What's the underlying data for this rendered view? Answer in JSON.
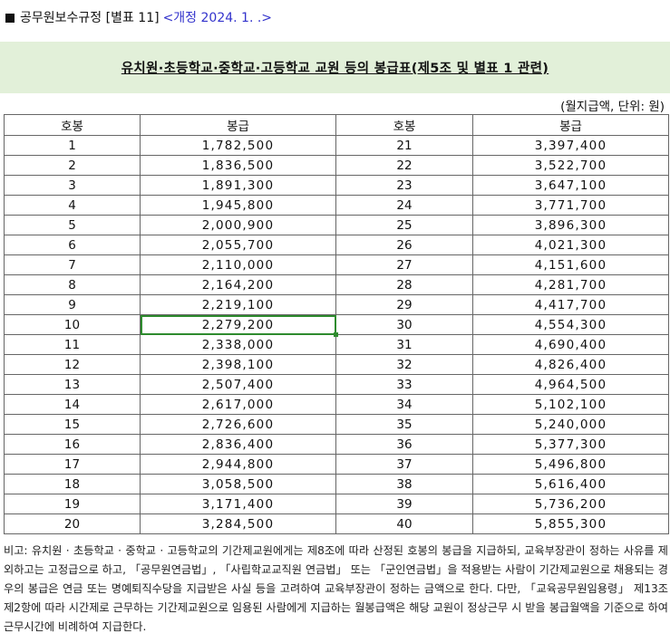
{
  "header": {
    "title": "공무원보수규정 [별표 11]",
    "revision_link": "<개정 2024. 1. .>"
  },
  "banner": {
    "title": "유치원·초등학교·중학교·고등학교 교원 등의 봉급표(제5조 및 별표 1 관련)"
  },
  "unit_label": "(월지급액, 단위: 원)",
  "table": {
    "headers": [
      "호봉",
      "봉급",
      "호봉",
      "봉급"
    ],
    "rows": [
      {
        "g1": "1",
        "p1": "1,782,500",
        "g2": "21",
        "p2": "3,397,400"
      },
      {
        "g1": "2",
        "p1": "1,836,500",
        "g2": "22",
        "p2": "3,522,700"
      },
      {
        "g1": "3",
        "p1": "1,891,300",
        "g2": "23",
        "p2": "3,647,100"
      },
      {
        "g1": "4",
        "p1": "1,945,800",
        "g2": "24",
        "p2": "3,771,700"
      },
      {
        "g1": "5",
        "p1": "2,000,900",
        "g2": "25",
        "p2": "3,896,300"
      },
      {
        "g1": "6",
        "p1": "2,055,700",
        "g2": "26",
        "p2": "4,021,300"
      },
      {
        "g1": "7",
        "p1": "2,110,000",
        "g2": "27",
        "p2": "4,151,600"
      },
      {
        "g1": "8",
        "p1": "2,164,200",
        "g2": "28",
        "p2": "4,281,700"
      },
      {
        "g1": "9",
        "p1": "2,219,100",
        "g2": "29",
        "p2": "4,417,700"
      },
      {
        "g1": "10",
        "p1": "2,279,200",
        "g2": "30",
        "p2": "4,554,300"
      },
      {
        "g1": "11",
        "p1": "2,338,000",
        "g2": "31",
        "p2": "4,690,400"
      },
      {
        "g1": "12",
        "p1": "2,398,100",
        "g2": "32",
        "p2": "4,826,400"
      },
      {
        "g1": "13",
        "p1": "2,507,400",
        "g2": "33",
        "p2": "4,964,500"
      },
      {
        "g1": "14",
        "p1": "2,617,000",
        "g2": "34",
        "p2": "5,102,100"
      },
      {
        "g1": "15",
        "p1": "2,726,600",
        "g2": "35",
        "p2": "5,240,000"
      },
      {
        "g1": "16",
        "p1": "2,836,400",
        "g2": "36",
        "p2": "5,377,300"
      },
      {
        "g1": "17",
        "p1": "2,944,800",
        "g2": "37",
        "p2": "5,496,800"
      },
      {
        "g1": "18",
        "p1": "3,058,500",
        "g2": "38",
        "p2": "5,616,400"
      },
      {
        "g1": "19",
        "p1": "3,171,400",
        "g2": "39",
        "p2": "5,736,200"
      },
      {
        "g1": "20",
        "p1": "3,284,500",
        "g2": "40",
        "p2": "5,855,300"
      }
    ],
    "selected_row": 10
  },
  "note": "비고: 유치원 · 초등학교 · 중학교 · 고등학교의 기간제교원에게는 제8조에 따라 산정된 호봉의 봉급을 지급하되, 교육부장관이 정하는 사유를 제외하고는 고정급으로 하고, 「공무원연금법」, 「사립학교교직원 연금법」 또는 「군인연금법」을 적용받는 사람이 기간제교원으로 채용되는 경우의 봉급은 연금 또는 명예퇴직수당을 지급받은 사실 등을 고려하여 교육부장관이 정하는 금액으로 한다. 다만, 「교육공무원임용령」 제13조제2항에 따라 시간제로 근무하는 기간제교원으로 임용된 사람에게 지급하는 월봉급액은 해당 교원이 정상근무 시 받을 봉급월액을 기준으로 하여 근무시간에 비례하여 지급한다."
}
